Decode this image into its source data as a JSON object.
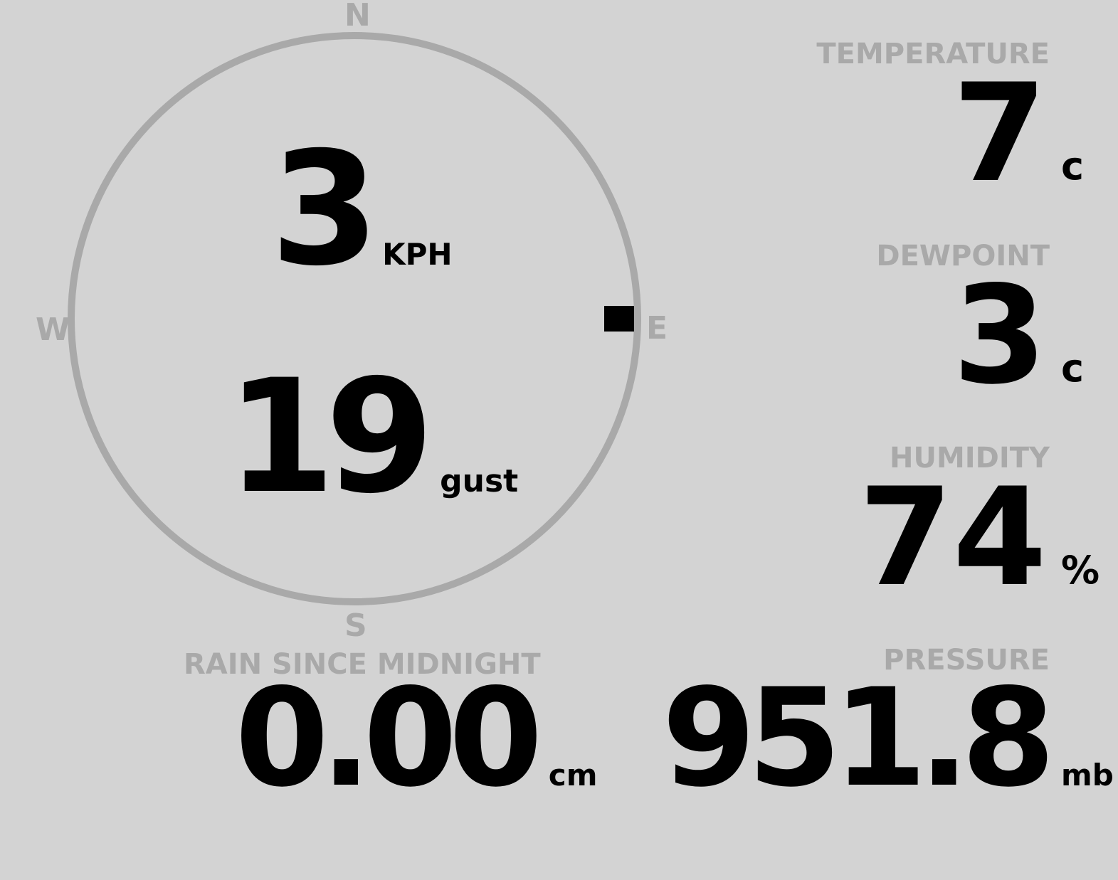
{
  "colors": {
    "background": "#d3d3d3",
    "label": "#a9a9a9",
    "value": "#000000"
  },
  "wind": {
    "compass": {
      "n": "N",
      "e": "E",
      "s": "S",
      "w": "W"
    },
    "direction_deg": 90,
    "speed": "3",
    "speed_unit": "KPH",
    "gust": "19",
    "gust_unit": "gust"
  },
  "temperature": {
    "label": "TEMPERATURE",
    "value": "7",
    "unit": "c"
  },
  "dewpoint": {
    "label": "DEWPOINT",
    "value": "3",
    "unit": "c"
  },
  "humidity": {
    "label": "HUMIDITY",
    "value": "74",
    "unit": "%"
  },
  "pressure": {
    "label": "PRESSURE",
    "value": "951.8",
    "unit": "mb"
  },
  "rain": {
    "label": "RAIN SINCE MIDNIGHT",
    "value": "0.00",
    "unit": "cm"
  }
}
